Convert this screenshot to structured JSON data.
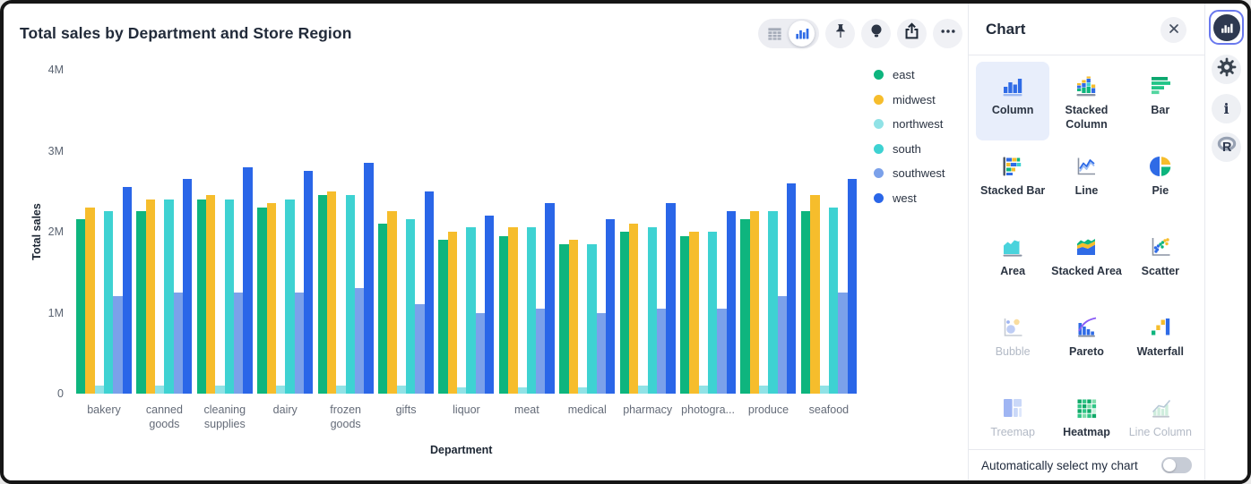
{
  "chart": {
    "title": "Total sales by Department and Store Region"
  },
  "chart_data": {
    "type": "bar",
    "title": "Total sales by Department and Store Region",
    "xlabel": "Department",
    "ylabel": "Total sales",
    "unit": "M",
    "ymax": 4,
    "ylim": [
      0,
      4000000
    ],
    "grid": false,
    "legend_position": "right",
    "yticks": [
      {
        "label": "4M",
        "value": 4
      },
      {
        "label": "3M",
        "value": 3
      },
      {
        "label": "2M",
        "value": 2
      },
      {
        "label": "1M",
        "value": 1
      },
      {
        "label": "0",
        "value": 0
      }
    ],
    "categories": [
      "bakery",
      "canned goods",
      "cleaning supplies",
      "dairy",
      "frozen goods",
      "gifts",
      "liquor",
      "meat",
      "medical",
      "pharmacy",
      "photogra...",
      "produce",
      "seafood"
    ],
    "series": [
      {
        "name": "east",
        "color": "#0eb57e",
        "values": [
          2.15,
          2.25,
          2.4,
          2.3,
          2.45,
          2.1,
          1.9,
          1.95,
          1.85,
          2.0,
          1.95,
          2.15,
          2.25
        ]
      },
      {
        "name": "midwest",
        "color": "#f6bd2c",
        "values": [
          2.3,
          2.4,
          2.45,
          2.35,
          2.5,
          2.25,
          2.0,
          2.05,
          1.9,
          2.1,
          2.0,
          2.25,
          2.45
        ]
      },
      {
        "name": "northwest",
        "color": "#90e2e6",
        "values": [
          0.1,
          0.1,
          0.1,
          0.1,
          0.1,
          0.1,
          0.08,
          0.08,
          0.08,
          0.1,
          0.1,
          0.1,
          0.1
        ]
      },
      {
        "name": "south",
        "color": "#3ed2d2",
        "values": [
          2.25,
          2.4,
          2.4,
          2.4,
          2.45,
          2.15,
          2.05,
          2.05,
          1.85,
          2.05,
          2.0,
          2.25,
          2.3
        ]
      },
      {
        "name": "southwest",
        "color": "#7ba1ea",
        "values": [
          1.2,
          1.25,
          1.25,
          1.25,
          1.3,
          1.1,
          1.0,
          1.05,
          1.0,
          1.05,
          1.05,
          1.2,
          1.25
        ]
      },
      {
        "name": "west",
        "color": "#2a66e8",
        "values": [
          2.55,
          2.65,
          2.8,
          2.75,
          2.85,
          2.5,
          2.2,
          2.35,
          2.15,
          2.35,
          2.25,
          2.6,
          2.65
        ]
      }
    ]
  },
  "toolbar": {
    "icons": [
      "table-view-icon",
      "column-chart-view-icon",
      "pin-icon",
      "lightbulb-icon",
      "share-icon",
      "more-icon"
    ],
    "active_view": "column-chart-view"
  },
  "panel": {
    "title": "Chart",
    "close_icon": "close-icon",
    "chart_types": [
      {
        "label": "Column",
        "key": "column",
        "state": "selected"
      },
      {
        "label": "Stacked Column",
        "key": "stacked-column",
        "state": "enabled"
      },
      {
        "label": "Bar",
        "key": "bar",
        "state": "enabled"
      },
      {
        "label": "Stacked Bar",
        "key": "stacked-bar",
        "state": "enabled"
      },
      {
        "label": "Line",
        "key": "line",
        "state": "enabled"
      },
      {
        "label": "Pie",
        "key": "pie",
        "state": "enabled"
      },
      {
        "label": "Area",
        "key": "area",
        "state": "enabled"
      },
      {
        "label": "Stacked Area",
        "key": "stacked-area",
        "state": "enabled"
      },
      {
        "label": "Scatter",
        "key": "scatter",
        "state": "enabled"
      },
      {
        "label": "Bubble",
        "key": "bubble",
        "state": "disabled"
      },
      {
        "label": "Pareto",
        "key": "pareto",
        "state": "enabled"
      },
      {
        "label": "Waterfall",
        "key": "waterfall",
        "state": "enabled"
      },
      {
        "label": "Treemap",
        "key": "treemap",
        "state": "disabled"
      },
      {
        "label": "Heatmap",
        "key": "heatmap",
        "state": "enabled"
      },
      {
        "label": "Line Column",
        "key": "line-column",
        "state": "disabled"
      }
    ],
    "footer": {
      "label": "Automatically select my chart",
      "toggle_on": false
    }
  },
  "sidebar": {
    "icons": [
      "chart-panel-icon",
      "settings-gear-icon",
      "info-icon",
      "r-language-icon"
    ],
    "active": "chart-panel"
  },
  "colors": {
    "accent": "#2f6be6",
    "selected_tile_bg": "#e8eefb",
    "panel_border": "#e7e9ee",
    "title_text": "#222b3a",
    "axis_text": "#5b6472"
  }
}
